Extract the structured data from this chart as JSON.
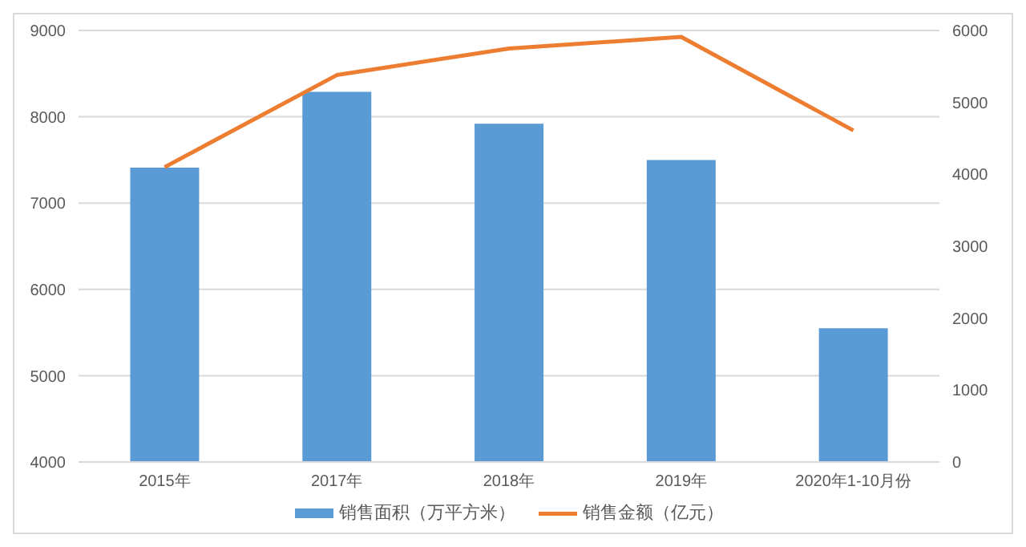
{
  "chart_data": {
    "type": "bar",
    "categories": [
      "2015年",
      "2017年",
      "2018年",
      "2019年",
      "2020年1-10月份"
    ],
    "series": [
      {
        "name": "销售面积（万平方米）",
        "color": "#5b9bd5",
        "values": [
          7410,
          8290,
          7920,
          7500,
          5550
        ]
      },
      {
        "name": "销售金额（亿元）",
        "type": "line",
        "axis": "y2",
        "color": "#ed7d31",
        "values": [
          4100,
          5380,
          5750,
          5910,
          4610
        ]
      }
    ],
    "ylim": [
      4000,
      9000
    ],
    "yticks": [
      4000,
      5000,
      6000,
      7000,
      8000,
      9000
    ],
    "y2lim": [
      0,
      6000
    ],
    "y2ticks": [
      0,
      1000,
      2000,
      3000,
      4000,
      5000,
      6000
    ],
    "grid": "y",
    "legend": "bottom",
    "marker": "none"
  }
}
